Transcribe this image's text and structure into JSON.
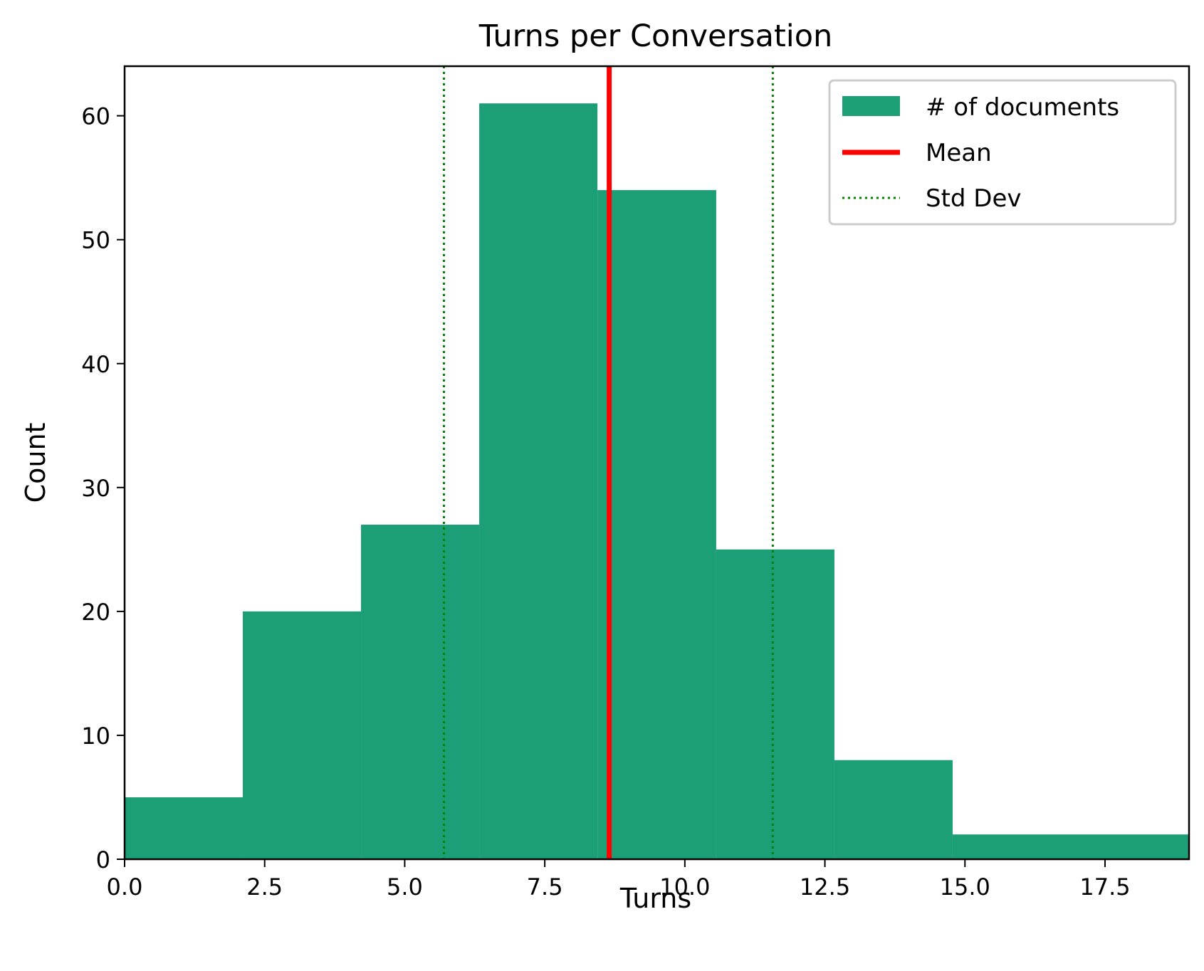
{
  "chart_data": {
    "type": "bar",
    "title": "Turns per Conversation",
    "xlabel": "Turns",
    "ylabel": "Count",
    "xlim": [
      0,
      19
    ],
    "ylim": [
      0,
      64
    ],
    "xticks": [
      "0.0",
      "2.5",
      "5.0",
      "7.5",
      "10.0",
      "12.5",
      "15.0",
      "17.5"
    ],
    "yticks": [
      "0",
      "10",
      "20",
      "30",
      "40",
      "50",
      "60"
    ],
    "bins": [
      {
        "x0": 0.0,
        "x1": 2.11,
        "count": 5
      },
      {
        "x0": 2.11,
        "x1": 4.22,
        "count": 20
      },
      {
        "x0": 4.22,
        "x1": 6.33,
        "count": 27
      },
      {
        "x0": 6.33,
        "x1": 8.44,
        "count": 61
      },
      {
        "x0": 8.44,
        "x1": 10.56,
        "count": 54
      },
      {
        "x0": 10.56,
        "x1": 12.67,
        "count": 25
      },
      {
        "x0": 12.67,
        "x1": 14.78,
        "count": 8
      },
      {
        "x0": 14.78,
        "x1": 19.0,
        "count": 2
      }
    ],
    "mean": 8.65,
    "std_lines": [
      5.7,
      11.57
    ],
    "legend": {
      "placement": "top-right",
      "entries": [
        "# of documents",
        "Mean",
        "Std Dev"
      ]
    },
    "colors": {
      "bars": "#1c9e77",
      "mean": "#ff0000",
      "std": "#008000"
    },
    "grid": false
  }
}
